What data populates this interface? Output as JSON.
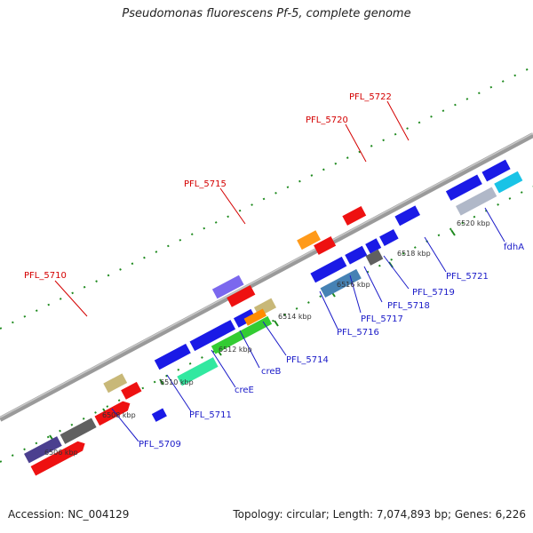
{
  "title": "Pseudomonas fluorescens Pf-5, complete genome",
  "footer": {
    "accession": "Accession: NC_004129",
    "summary": "Topology: circular; Length: 7,074,893 bp; Genes: 6,226"
  },
  "colors": {
    "backbone": "#8a8a8a",
    "tick": "#1e8a1e",
    "label_red": "#d40000",
    "label_blue": "#1a1ac8"
  },
  "scale_labels": [
    "6506 kbp",
    "6508 kbp",
    "6510 kbp",
    "6512 kbp",
    "6514 kbp",
    "6516 kbp",
    "6518 kbp",
    "6520 kbp"
  ],
  "gene_labels_upper": [
    "PFL_5710",
    "PFL_5715",
    "PFL_5720",
    "PFL_5722"
  ],
  "gene_labels_lower": [
    "PFL_5709",
    "PFL_5711",
    "creE",
    "creB",
    "PFL_5714",
    "PFL_5716",
    "PFL_5717",
    "PFL_5718",
    "PFL_5719",
    "PFL_5721",
    "fdhA"
  ],
  "genes": [
    {
      "name": "PFL_5709",
      "color": "#1a1ae6"
    },
    {
      "name": "PFL_5710",
      "color": "#c8b878"
    },
    {
      "name": "PFL_5711",
      "color": "#32e8a0"
    },
    {
      "name": "creE",
      "color": "#33cc33"
    },
    {
      "name": "creB",
      "color": "#ff8c00"
    },
    {
      "name": "PFL_5714",
      "color": "#c8b878"
    },
    {
      "name": "PFL_5715",
      "color": "#7b68ee"
    },
    {
      "name": "PFL_5716",
      "color": "#4682b4"
    },
    {
      "name": "PFL_5717",
      "color": "#606060"
    },
    {
      "name": "PFL_5718",
      "color": "#1a1ae6"
    },
    {
      "name": "PFL_5719",
      "color": "#1a1ae6"
    },
    {
      "name": "PFL_5720",
      "color": "#ff9a1a"
    },
    {
      "name": "PFL_5721",
      "color": "#1a1ae6"
    },
    {
      "name": "PFL_5722",
      "color": "#ee1111"
    },
    {
      "name": "fdhA",
      "color": "#b0b8c8"
    }
  ]
}
